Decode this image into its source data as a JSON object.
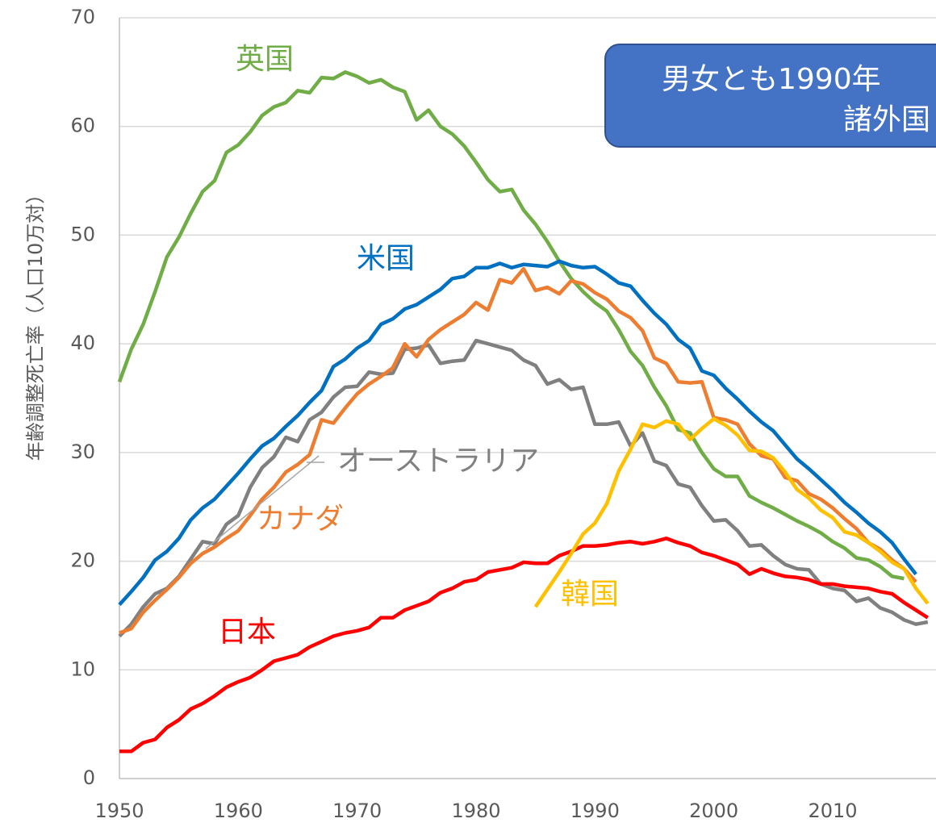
{
  "chart_data": {
    "type": "line",
    "y_label": "年齢調整死亡率（人口10万対）",
    "annotations": [
      "男女とも1990年",
      "諸外国"
    ],
    "x": [
      1950,
      1951,
      1952,
      1953,
      1954,
      1955,
      1956,
      1957,
      1958,
      1959,
      1960,
      1961,
      1962,
      1963,
      1964,
      1965,
      1966,
      1967,
      1968,
      1969,
      1970,
      1971,
      1972,
      1973,
      1974,
      1975,
      1976,
      1977,
      1978,
      1979,
      1980,
      1981,
      1982,
      1983,
      1984,
      1985,
      1986,
      1987,
      1988,
      1989,
      1990,
      1991,
      1992,
      1993,
      1994,
      1995,
      1996,
      1997,
      1998,
      1999,
      2000,
      2001,
      2002,
      2003,
      2004,
      2005,
      2006,
      2007,
      2008,
      2009,
      2010,
      2011,
      2012,
      2013,
      2014,
      2015,
      2016,
      2017,
      2018
    ],
    "xlim": [
      1950,
      2020
    ],
    "xticks": [
      1950,
      1960,
      1970,
      1980,
      1990,
      2000,
      2010
    ],
    "ylim": [
      0,
      70
    ],
    "yticks": [
      0,
      10,
      20,
      30,
      40,
      50,
      60,
      70
    ],
    "grid": true,
    "series": [
      {
        "name": "英国",
        "color": "#70ad47",
        "values": [
          36.5,
          39.5,
          41.8,
          44.8,
          48,
          49.8,
          52,
          54,
          55,
          57.6,
          58.3,
          59.5,
          61,
          61.8,
          62.2,
          63.3,
          63.1,
          64.5,
          64.4,
          65,
          64.6,
          64,
          64.3,
          63.6,
          63.2,
          60.6,
          61.5,
          60,
          59.3,
          58.2,
          56.7,
          55.1,
          54,
          54.2,
          52.3,
          51,
          49.4,
          47.6,
          46,
          44.8,
          43.8,
          43,
          41.3,
          39.3,
          38,
          36,
          34.3,
          32.1,
          31.8,
          30,
          28.5,
          27.8,
          27.8,
          26,
          25.4,
          24.9,
          24.3,
          23.7,
          23.2,
          22.6,
          21.8,
          21.2,
          20.3,
          20.1,
          19.5,
          18.6,
          18.4,
          null,
          null
        ]
      },
      {
        "name": "米国",
        "color": "#0070c0",
        "values": [
          16,
          17.2,
          18.5,
          20.1,
          20.9,
          22.1,
          23.8,
          24.9,
          25.7,
          26.9,
          28.1,
          29.4,
          30.6,
          31.3,
          32.4,
          33.4,
          34.6,
          35.7,
          37.9,
          38.6,
          39.6,
          40.3,
          41.8,
          42.3,
          43.2,
          43.6,
          44.3,
          45,
          46,
          46.2,
          47,
          47,
          47.4,
          47,
          47.3,
          47.2,
          47.1,
          47.6,
          47.2,
          47,
          47.1,
          46.4,
          45.6,
          45.3,
          44,
          42.8,
          41.8,
          40.4,
          39.6,
          37.5,
          37.1,
          35.9,
          34.9,
          33.8,
          32.8,
          32,
          30.7,
          29.4,
          28.5,
          27.5,
          26.5,
          25.4,
          24.5,
          23.5,
          22.7,
          21.7,
          20.2,
          18.8,
          null
        ]
      },
      {
        "name": "オーストラリア",
        "color": "#808080",
        "values": [
          13.1,
          14.2,
          15.8,
          17,
          17.5,
          18.6,
          20.2,
          21.8,
          21.6,
          23.4,
          24.2,
          26.8,
          28.6,
          29.6,
          31.4,
          31,
          33,
          33.7,
          35.1,
          36,
          36.1,
          37.4,
          37.2,
          37.3,
          39.5,
          39.6,
          39.9,
          38.2,
          38.4,
          38.5,
          40.3,
          40,
          39.7,
          39.4,
          38.5,
          38,
          36.3,
          36.7,
          35.8,
          36,
          32.6,
          32.6,
          32.8,
          30.6,
          31.8,
          29.2,
          28.8,
          27.1,
          26.8,
          25.1,
          23.7,
          23.8,
          22.8,
          21.4,
          21.5,
          20.5,
          19.7,
          19.3,
          19.2,
          17.9,
          17.5,
          17.3,
          16.3,
          16.6,
          15.7,
          15.3,
          14.6,
          14.2,
          14.4
        ]
      },
      {
        "name": "カナダ",
        "color": "#ed7d31",
        "values": [
          13.4,
          13.8,
          15.3,
          16.4,
          17.4,
          18.5,
          19.8,
          20.7,
          21.3,
          22.1,
          22.8,
          24.2,
          25.7,
          26.8,
          28.2,
          28.9,
          29.8,
          33,
          32.7,
          34.1,
          35.4,
          36.3,
          37,
          37.8,
          40,
          38.8,
          40.4,
          41.3,
          42,
          42.7,
          43.8,
          43.1,
          45.9,
          45.6,
          46.9,
          44.9,
          45.2,
          44.6,
          45.8,
          45.5,
          44.7,
          44.1,
          43,
          42.4,
          41.2,
          38.7,
          38.2,
          36.5,
          36.4,
          36.5,
          33.2,
          33,
          32.6,
          30.8,
          29.7,
          29.4,
          27.7,
          27.4,
          26.2,
          25.7,
          24.9,
          23.9,
          23,
          21.7,
          21.1,
          20.1,
          19.3,
          18.1,
          null
        ]
      },
      {
        "name": "日本",
        "color": "#ff0000",
        "values": [
          2.5,
          2.5,
          3.3,
          3.6,
          4.7,
          5.4,
          6.4,
          6.9,
          7.6,
          8.4,
          8.9,
          9.3,
          10,
          10.8,
          11.1,
          11.4,
          12.1,
          12.6,
          13.1,
          13.4,
          13.6,
          13.9,
          14.8,
          14.8,
          15.5,
          15.9,
          16.3,
          17.1,
          17.5,
          18.1,
          18.3,
          19,
          19.2,
          19.4,
          19.9,
          19.8,
          19.8,
          20.5,
          20.9,
          21.4,
          21.4,
          21.5,
          21.7,
          21.8,
          21.6,
          21.8,
          22.1,
          21.7,
          21.4,
          20.8,
          20.5,
          20.1,
          19.7,
          18.8,
          19.3,
          18.9,
          18.6,
          18.5,
          18.3,
          17.9,
          17.9,
          17.7,
          17.6,
          17.5,
          17.2,
          17,
          16.2,
          15.5,
          14.8
        ]
      },
      {
        "name": "韓国",
        "color": "#ffc000",
        "values": [
          null,
          null,
          null,
          null,
          null,
          null,
          null,
          null,
          null,
          null,
          null,
          null,
          null,
          null,
          null,
          null,
          null,
          null,
          null,
          null,
          null,
          null,
          null,
          null,
          null,
          null,
          null,
          null,
          null,
          null,
          null,
          null,
          null,
          null,
          null,
          15.8,
          17.4,
          19,
          20.7,
          22.5,
          23.5,
          25.3,
          28.3,
          30.3,
          32.6,
          32.3,
          32.9,
          32.6,
          31.2,
          32.2,
          33.1,
          32.5,
          31.6,
          30.2,
          30.1,
          29.5,
          28.2,
          26.6,
          25.8,
          24.7,
          24,
          22.7,
          22.4,
          21.7,
          20.9,
          19.9,
          19.3,
          17.5,
          16.1
        ]
      }
    ]
  }
}
